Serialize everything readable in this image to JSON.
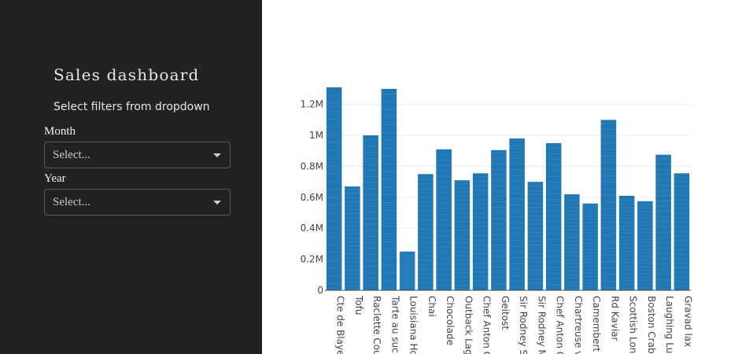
{
  "sidebar": {
    "title": "Sales dashboard",
    "subtitle": "Select filters from dropdown",
    "filters": [
      {
        "label": "Month",
        "placeholder": "Select..."
      },
      {
        "label": "Year",
        "placeholder": "Select..."
      }
    ]
  },
  "colors": {
    "sidebar_bg": "#222222",
    "bar": "#1f77b4",
    "bar_stripe": "#5b9bd0",
    "grid": "#ebebeb"
  },
  "chart_data": {
    "type": "bar",
    "title": "",
    "xlabel": "",
    "ylabel": "",
    "ylim": [
      0,
      1300000
    ],
    "grid": true,
    "legend": "none",
    "yticks": [
      {
        "value": 0,
        "label": "0"
      },
      {
        "value": 200000,
        "label": "0.2M"
      },
      {
        "value": 400000,
        "label": "0.4M"
      },
      {
        "value": 600000,
        "label": "0.6M"
      },
      {
        "value": 800000,
        "label": "0.8M"
      },
      {
        "value": 1000000,
        "label": "1M"
      },
      {
        "value": 1200000,
        "label": "1.2M"
      }
    ],
    "categories": [
      "Cte de Blaye",
      "Tofu",
      "Raclette Courdavault",
      "Tarte au sucre",
      "Louisiana Hot Spiced Okra",
      "Chai",
      "Chocolade",
      "Outback Lager",
      "Chef Anton Gumbo Mix",
      "Geitost",
      "Sir Rodney Scones",
      "Sir Rodney Marmalade",
      "Chef Anton Cajun Seasoning",
      "Chartreuse verte",
      "Camembert Pierrot",
      "Rd Kaviar",
      "Scottish Longbreads",
      "Boston Crab Meat",
      "Laughing Lumberjack Lager",
      "Gravad lax"
    ],
    "tick_labels": [
      "Cte de Blaye",
      "Tofu",
      "Raclette Cour",
      "Tarte au sucr",
      "Louisiana Ho",
      "Chai",
      "Chocolade",
      "Outback Lage",
      "Chef Anton G",
      "Geitost",
      "Sir Rodney Sc",
      "Sir Rodney M",
      "Chef Anton C",
      "Chartreuse v",
      "Camembert P",
      "Rd Kaviar",
      "Scottish Long",
      "Boston Crab",
      "Laughing Lur",
      "Gravad lax"
    ],
    "values": [
      1310000,
      670000,
      1000000,
      1300000,
      250000,
      750000,
      910000,
      710000,
      755000,
      905000,
      980000,
      700000,
      950000,
      620000,
      560000,
      1100000,
      610000,
      575000,
      875000,
      755000
    ]
  }
}
